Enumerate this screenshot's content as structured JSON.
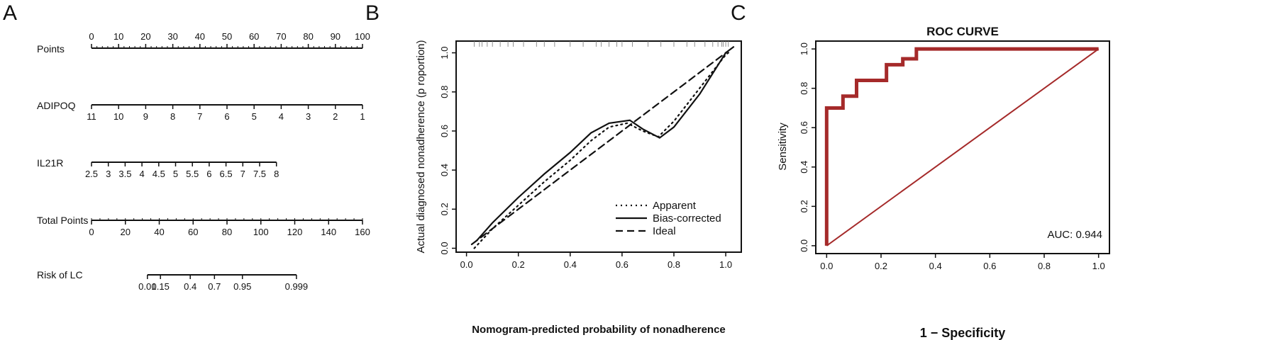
{
  "panels": [
    {
      "id": "A",
      "label": "A"
    },
    {
      "id": "B",
      "label": "B"
    },
    {
      "id": "C",
      "label": "C"
    }
  ],
  "chart_data": [
    {
      "type": "nomogram",
      "panel": "A",
      "rows": [
        {
          "name": "Points",
          "ticks": [
            "0",
            "10",
            "20",
            "30",
            "40",
            "50",
            "60",
            "70",
            "80",
            "90",
            "100"
          ],
          "minor_step": 2,
          "tick_labels_above": true
        },
        {
          "name": "ADIPOQ",
          "ticks": [
            "11",
            "10",
            "9",
            "8",
            "7",
            "6",
            "5",
            "4",
            "3",
            "2",
            "1"
          ]
        },
        {
          "name": "IL21R",
          "ticks": [
            "2.5",
            "3",
            "3.5",
            "4",
            "4.5",
            "5",
            "5.5",
            "6",
            "6.5",
            "7",
            "7.5",
            "8"
          ]
        },
        {
          "name": "Total Points",
          "ticks": [
            "0",
            "20",
            "40",
            "60",
            "80",
            "100",
            "120",
            "140",
            "160"
          ],
          "minor_step": 10
        },
        {
          "name": "Risk of LC",
          "ticks": [
            "0.01",
            "0.15",
            "0.4",
            "0.7",
            "0.95",
            "0.999"
          ],
          "tick_points": [
            30,
            37,
            53,
            66,
            81,
            110
          ]
        }
      ]
    },
    {
      "type": "line",
      "panel": "B",
      "xlabel": "Nomogram-predicted probability of nonadherence",
      "ylabel": "Actual diagnosed nonadherence (p roportion)",
      "xlim": [
        -0.04,
        1.06
      ],
      "ylim": [
        -0.02,
        1.06
      ],
      "xticks": [
        "0.0",
        "0.2",
        "0.4",
        "0.6",
        "0.8",
        "1.0"
      ],
      "yticks": [
        "0.0",
        "0.2",
        "0.4",
        "0.6",
        "0.8",
        "1.0"
      ],
      "series": [
        {
          "name": "Apparent",
          "style": "dotted",
          "x": [
            0.03,
            0.1,
            0.2,
            0.3,
            0.4,
            0.48,
            0.55,
            0.62,
            0.68,
            0.74,
            0.8,
            0.9,
            1.0,
            1.02
          ],
          "y": [
            0.0,
            0.1,
            0.22,
            0.34,
            0.45,
            0.55,
            0.62,
            0.64,
            0.6,
            0.57,
            0.65,
            0.82,
            0.99,
            1.01
          ]
        },
        {
          "name": "Bias-corrected",
          "style": "solid",
          "x": [
            0.04,
            0.1,
            0.2,
            0.3,
            0.4,
            0.48,
            0.55,
            0.63,
            0.68,
            0.745,
            0.8,
            0.9,
            1.0,
            1.03
          ],
          "y": [
            0.04,
            0.13,
            0.26,
            0.38,
            0.49,
            0.59,
            0.64,
            0.655,
            0.61,
            0.565,
            0.62,
            0.79,
            1.0,
            1.03
          ]
        },
        {
          "name": "Ideal",
          "style": "dashed",
          "x": [
            0.02,
            1.0
          ],
          "y": [
            0.02,
            1.0
          ]
        }
      ],
      "rug_x": [
        0.03,
        0.05,
        0.06,
        0.08,
        0.1,
        0.13,
        0.16,
        0.18,
        0.22,
        0.27,
        0.3,
        0.34,
        0.4,
        0.45,
        0.5,
        0.52,
        0.55,
        0.58,
        0.6,
        0.64,
        0.7,
        0.75,
        0.8,
        0.85,
        0.88,
        0.92,
        0.95,
        0.97,
        0.985,
        0.99,
        1.0,
        1.01
      ],
      "legend_position": "bottom-right"
    },
    {
      "type": "line",
      "panel": "C",
      "title": "ROC CURVE",
      "xlabel": "1 − Specificity",
      "ylabel": "Sensitivity",
      "xlim": [
        -0.04,
        1.04
      ],
      "ylim": [
        -0.04,
        1.04
      ],
      "xticks": [
        "0.0",
        "0.2",
        "0.4",
        "0.6",
        "0.8",
        "1.0"
      ],
      "yticks": [
        "0.0",
        "0.2",
        "0.4",
        "0.6",
        "0.8",
        "1.0"
      ],
      "series": [
        {
          "name": "ROC",
          "style": "step",
          "x": [
            0,
            0,
            0.06,
            0.06,
            0.11,
            0.11,
            0.22,
            0.22,
            0.28,
            0.28,
            0.33,
            0.33,
            1.0
          ],
          "y": [
            0,
            0.7,
            0.7,
            0.76,
            0.76,
            0.84,
            0.84,
            0.92,
            0.92,
            0.95,
            0.95,
            1.0,
            1.0
          ]
        },
        {
          "name": "Reference",
          "style": "diagonal",
          "x": [
            0,
            1
          ],
          "y": [
            0,
            1
          ]
        }
      ],
      "annotation": "AUC: 0.944",
      "colors": {
        "curve": "#a52a2a"
      }
    }
  ]
}
